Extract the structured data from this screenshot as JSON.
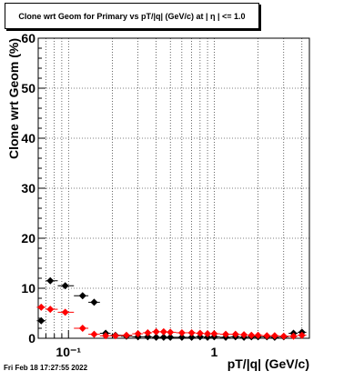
{
  "title": "Clone wrt Geom for Primary vs pT/|q| (GeV/c) at |  η  | <= 1.0",
  "footer_timestamp": "Fri Feb 18 17:27:55 2022",
  "colors": {
    "series_black": "#000000",
    "series_red": "#ff0000",
    "grid": "#000000"
  },
  "chart_data": {
    "type": "scatter",
    "title": "Clone wrt Geom for Primary vs pT/|q| (GeV/c) at |  η  | <= 1.0",
    "xlabel": "pT/|q| (GeV/c)",
    "ylabel": "Clone wrt Geom (%)",
    "xscale": "log",
    "xlim": [
      0.062,
      4.5
    ],
    "ylim": [
      0,
      60
    ],
    "grid": true,
    "y_ticks": [
      0,
      10,
      20,
      30,
      40,
      50,
      60
    ],
    "y_tick_labels": [
      "0",
      "10",
      "20",
      "30",
      "40",
      "50",
      "60"
    ],
    "x_major_ticks": [
      0.1,
      1
    ],
    "x_tick_labels": [
      "10⁻¹",
      "1"
    ],
    "series": [
      {
        "color": "#000000",
        "x": [
          0.065,
          0.075,
          0.095,
          0.125,
          0.15,
          0.18,
          0.21,
          0.25,
          0.3,
          0.35,
          0.4,
          0.45,
          0.5,
          0.6,
          0.7,
          0.8,
          0.9,
          1.0,
          1.2,
          1.4,
          1.6,
          1.8,
          2.0,
          2.3,
          2.6,
          3.0,
          3.5,
          4.0
        ],
        "y": [
          3.5,
          11.5,
          10.5,
          8.5,
          7.2,
          1.0,
          0.6,
          0.4,
          0.3,
          0.3,
          0.2,
          0.2,
          0.2,
          0.2,
          0.2,
          0.3,
          0.2,
          0.3,
          0.2,
          0.3,
          0.2,
          0.3,
          0.3,
          0.3,
          0.2,
          0.3,
          1.0,
          1.2
        ]
      },
      {
        "color": "#ff0000",
        "x": [
          0.065,
          0.075,
          0.095,
          0.125,
          0.15,
          0.18,
          0.21,
          0.25,
          0.3,
          0.35,
          0.4,
          0.45,
          0.5,
          0.6,
          0.7,
          0.8,
          0.9,
          1.0,
          1.2,
          1.4,
          1.6,
          1.8,
          2.0,
          2.3,
          2.6,
          3.0,
          3.5,
          4.0
        ],
        "y": [
          6.2,
          5.8,
          5.2,
          2.0,
          0.8,
          0.5,
          0.5,
          0.6,
          0.9,
          1.1,
          1.3,
          1.3,
          1.2,
          1.1,
          1.1,
          1.0,
          0.9,
          0.9,
          0.8,
          0.8,
          0.7,
          0.6,
          0.6,
          0.5,
          0.5,
          0.4,
          0.4,
          0.6
        ]
      }
    ]
  }
}
